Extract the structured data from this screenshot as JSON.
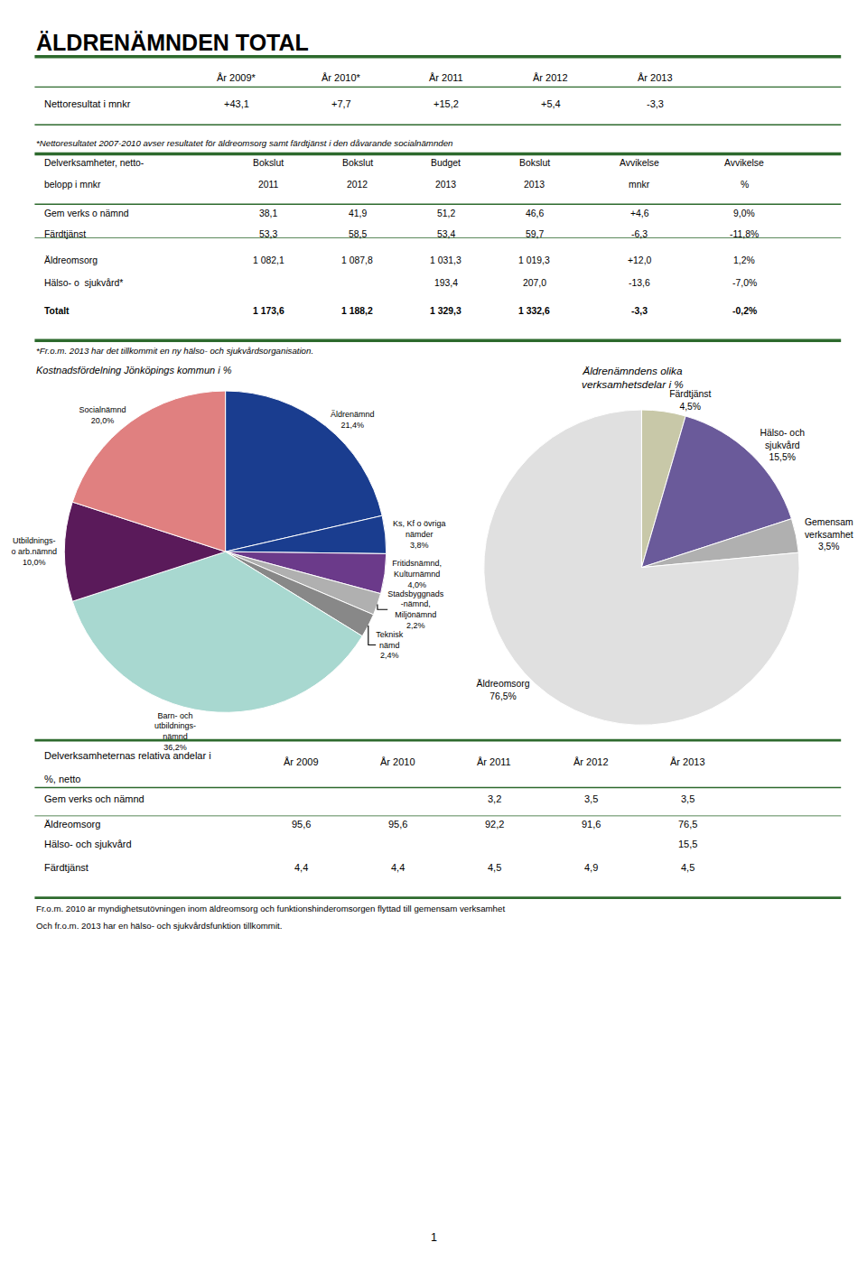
{
  "title": "ÄLDRENÄMNDEN TOTAL",
  "page_number": "1",
  "chart_data": [
    {
      "type": "table",
      "color": "#2d6a2d",
      "columns": [
        "År 2009*",
        "År 2010*",
        "År 2011",
        "År 2012",
        "År 2013"
      ],
      "rows": [
        [
          "Nettoresultat i mnkr",
          "+43,1",
          "+7,7",
          "+15,2",
          "+5,4",
          "-3,3"
        ]
      ],
      "footnotes": [
        "*Nettoresultatet 2007-2010 avser resultatet för äldreomsorg samt färdtjänst i den dåvarande socialnämnden"
      ]
    },
    {
      "type": "table",
      "color": "#2d6a2d",
      "row_header": "Delverksamheter, netto-\nbelopp i mnkr",
      "columns": [
        "Bokslut\n2011",
        "Bokslut\n2012",
        "Budget\n2013",
        "Bokslut\n2013",
        "Avvikelse\nmnkr",
        "Avvikelse\n%"
      ],
      "rows": [
        [
          "Gem verks o nämnd",
          "38,1",
          "41,9",
          "51,2",
          "46,6",
          "+4,6",
          "9,0%"
        ],
        [
          "Färdtjänst",
          "53,3",
          "58,5",
          "53,4",
          "59,7",
          "-6,3",
          "-11,8%"
        ],
        [
          "Äldreomsorg",
          "1 082,1",
          "1 087,8",
          "1 031,3",
          "1 019,3",
          "+12,0",
          "1,2%"
        ],
        [
          "Hälso- o  sjukvård*",
          "",
          "",
          "193,4",
          "207,0",
          "-13,6",
          "-7,0%"
        ],
        [
          "Totalt",
          "1 173,6",
          "1 188,2",
          "1 329,3",
          "1 332,6",
          "-3,3",
          "-0,2%"
        ]
      ],
      "footnotes": [
        "*Fr.o.m. 2013 har det tillkommit en ny hälso- och sjukvårdsorganisation."
      ]
    },
    {
      "type": "pie",
      "title": "Kostnadsfördelning Jönköpings kommun i %",
      "categories": [
        "Äldrenämnd",
        "Ks, Kf o övriga\nnämder",
        "Fritidsnämnd,\nKulturnämnd",
        "Stadsbyggnads\n-nämnd,\nMiljönämnd",
        "Teknisk\nnämd",
        "Barn- och\nutbildnings-\nnämnd",
        "Utbildnings-\no arb.nämnd",
        "Socialnämnd"
      ],
      "values": [
        21.4,
        3.8,
        4.0,
        2.2,
        2.4,
        36.2,
        10.0,
        20.0
      ],
      "value_labels": [
        "21,4%",
        "3,8%",
        "4,0%",
        "2,2%",
        "2,4%",
        "36,2%",
        "10,0%",
        "20,0%"
      ],
      "colors": [
        "#1a3d8f",
        "#1a3d8f",
        "#6b3a8a",
        "#b0b0b0",
        "#888888",
        "#a8d8d0",
        "#5a1a5a",
        "#e08080"
      ],
      "data_labels": true
    },
    {
      "type": "pie",
      "title": "Äldrenämndens olika\nverksamhetsdelar i %",
      "categories": [
        "Färdtjänst",
        "Hälso- och\nsjukvård",
        "Gemensam\nverksamhet",
        "Äldreomsorg"
      ],
      "values": [
        4.5,
        15.5,
        3.5,
        76.5
      ],
      "value_labels": [
        "4,5%",
        "15,5%",
        "3,5%",
        "76,5%"
      ],
      "colors": [
        "#c8c8a8",
        "#6a5a9a",
        "#b0b0b0",
        "#e0e0e0"
      ],
      "data_labels": true
    },
    {
      "type": "table",
      "color": "#2d6a2d",
      "row_header": "Delverksamheternas relativa andelar i\n%, netto",
      "columns": [
        "År 2009",
        "År 2010",
        "År 2011",
        "År 2012",
        "År 2013"
      ],
      "rows": [
        [
          "Gem verks och nämnd",
          "",
          "",
          "3,2",
          "3,5",
          "3,5"
        ],
        [
          "Äldreomsorg",
          "95,6",
          "95,6",
          "92,2",
          "91,6",
          "76,5"
        ],
        [
          "Hälso- och sjukvård",
          "",
          "",
          "",
          "",
          "15,5"
        ],
        [
          "Färdtjänst",
          "4,4",
          "4,4",
          "4,5",
          "4,9",
          "4,5"
        ]
      ],
      "footnotes": [
        "Fr.o.m. 2010 är myndighetsutövningen inom äldreomsorg och funktionshinderomsorgen flyttad till gemensam verksamhet",
        "Och fr.o.m. 2013 har en hälso- och sjukvårdsfunktion tillkommit."
      ]
    }
  ]
}
